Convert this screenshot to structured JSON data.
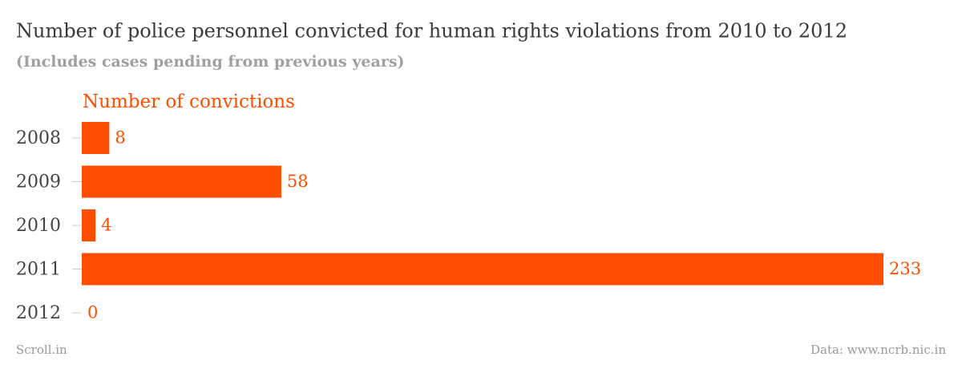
{
  "chart_data": {
    "type": "bar",
    "orientation": "horizontal",
    "title": "Number of police personnel convicted for human rights violations from 2010 to 2012",
    "subtitle": "(Includes cases pending from previous years)",
    "categories": [
      "2008",
      "2009",
      "2010",
      "2011",
      "2012"
    ],
    "series": [
      {
        "name": "Number of convictions",
        "color": "#ff4e00",
        "values": [
          8,
          58,
          4,
          233,
          0
        ]
      }
    ],
    "source_left": "Scroll.in",
    "source_right": "Data: www.ncrb.nic.in"
  }
}
